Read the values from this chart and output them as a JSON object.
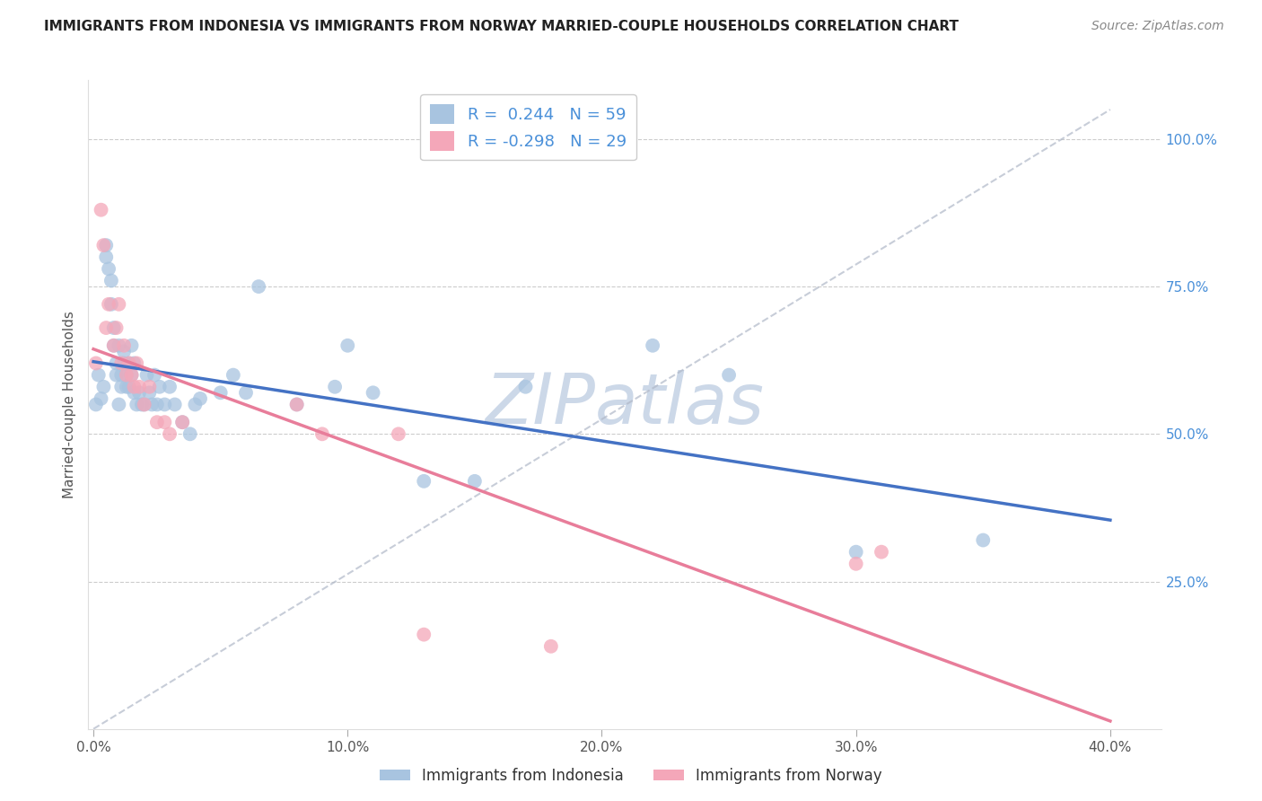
{
  "title": "IMMIGRANTS FROM INDONESIA VS IMMIGRANTS FROM NORWAY MARRIED-COUPLE HOUSEHOLDS CORRELATION CHART",
  "source": "Source: ZipAtlas.com",
  "xlabel_ticks": [
    "0.0%",
    "",
    "",
    "",
    "10.0%",
    "",
    "",
    "",
    "20.0%",
    "",
    "",
    "",
    "30.0%",
    "",
    "",
    "",
    "40.0%"
  ],
  "xlabel_tick_vals": [
    0.0,
    0.025,
    0.05,
    0.075,
    0.1,
    0.125,
    0.15,
    0.175,
    0.2,
    0.225,
    0.25,
    0.275,
    0.3,
    0.325,
    0.35,
    0.375,
    0.4
  ],
  "ylabel": "Married-couple Households",
  "ylabel_ticks": [
    "25.0%",
    "50.0%",
    "75.0%",
    "100.0%"
  ],
  "ylabel_tick_vals": [
    0.25,
    0.5,
    0.75,
    1.0
  ],
  "xlim": [
    -0.002,
    0.42
  ],
  "ylim": [
    0.0,
    1.1
  ],
  "indonesia_R": 0.244,
  "indonesia_N": 59,
  "norway_R": -0.298,
  "norway_N": 29,
  "indonesia_color": "#a8c4e0",
  "norway_color": "#f4a7b9",
  "indonesia_line_color": "#4472c4",
  "norway_line_color": "#e87d9a",
  "dashed_line_color": "#b0b8c8",
  "indonesia_x": [
    0.001,
    0.002,
    0.003,
    0.004,
    0.005,
    0.005,
    0.006,
    0.007,
    0.007,
    0.008,
    0.008,
    0.009,
    0.009,
    0.01,
    0.01,
    0.011,
    0.011,
    0.012,
    0.012,
    0.013,
    0.013,
    0.014,
    0.014,
    0.015,
    0.015,
    0.016,
    0.016,
    0.017,
    0.018,
    0.019,
    0.02,
    0.021,
    0.022,
    0.023,
    0.024,
    0.025,
    0.026,
    0.028,
    0.03,
    0.032,
    0.035,
    0.038,
    0.04,
    0.042,
    0.05,
    0.055,
    0.06,
    0.065,
    0.08,
    0.095,
    0.1,
    0.11,
    0.13,
    0.15,
    0.17,
    0.22,
    0.25,
    0.3,
    0.35
  ],
  "indonesia_y": [
    0.55,
    0.6,
    0.56,
    0.58,
    0.8,
    0.82,
    0.78,
    0.72,
    0.76,
    0.65,
    0.68,
    0.62,
    0.6,
    0.65,
    0.55,
    0.6,
    0.58,
    0.62,
    0.64,
    0.58,
    0.6,
    0.62,
    0.58,
    0.65,
    0.6,
    0.57,
    0.62,
    0.55,
    0.57,
    0.55,
    0.55,
    0.6,
    0.57,
    0.55,
    0.6,
    0.55,
    0.58,
    0.55,
    0.58,
    0.55,
    0.52,
    0.5,
    0.55,
    0.56,
    0.57,
    0.6,
    0.57,
    0.75,
    0.55,
    0.58,
    0.65,
    0.57,
    0.42,
    0.42,
    0.58,
    0.65,
    0.6,
    0.3,
    0.32
  ],
  "norway_x": [
    0.001,
    0.003,
    0.004,
    0.005,
    0.006,
    0.008,
    0.009,
    0.01,
    0.011,
    0.012,
    0.013,
    0.014,
    0.015,
    0.016,
    0.017,
    0.018,
    0.02,
    0.022,
    0.025,
    0.028,
    0.03,
    0.035,
    0.08,
    0.09,
    0.12,
    0.13,
    0.18,
    0.3,
    0.31
  ],
  "norway_y": [
    0.62,
    0.88,
    0.82,
    0.68,
    0.72,
    0.65,
    0.68,
    0.72,
    0.62,
    0.65,
    0.6,
    0.62,
    0.6,
    0.58,
    0.62,
    0.58,
    0.55,
    0.58,
    0.52,
    0.52,
    0.5,
    0.52,
    0.55,
    0.5,
    0.5,
    0.16,
    0.14,
    0.28,
    0.3
  ],
  "watermark": "ZIPatlas",
  "watermark_color": "#ccd8e8",
  "legend_labels": [
    "Immigrants from Indonesia",
    "Immigrants from Norway"
  ]
}
